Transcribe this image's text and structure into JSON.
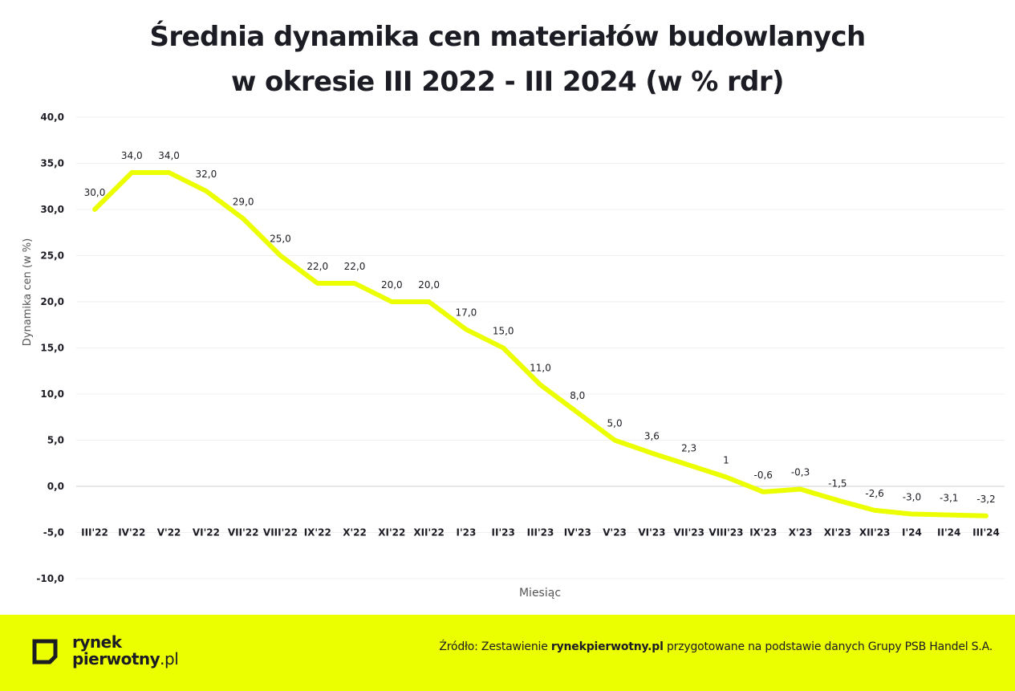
{
  "title": {
    "line1": "Średnia dynamika cen materiałów budowlanych",
    "line2": "w okresie III 2022 - III 2024 (w % rdr)"
  },
  "chart_data": {
    "type": "line",
    "categories": [
      "III'22",
      "IV'22",
      "V'22",
      "VI'22",
      "VII'22",
      "VIII'22",
      "IX'22",
      "X'22",
      "XI'22",
      "XII'22",
      "I'23",
      "II'23",
      "III'23",
      "IV'23",
      "V'23",
      "VI'23",
      "VII'23",
      "VIII'23",
      "IX'23",
      "X'23",
      "XI'23",
      "XII'23",
      "I'24",
      "II'24",
      "III'24"
    ],
    "values": [
      30.0,
      34.0,
      34.0,
      32.0,
      29.0,
      25.0,
      22.0,
      22.0,
      20.0,
      20.0,
      17.0,
      15.0,
      11.0,
      8.0,
      5.0,
      3.6,
      2.3,
      1,
      -0.6,
      -0.3,
      -1.5,
      -2.6,
      -3.0,
      -3.1,
      -3.2
    ],
    "data_labels": [
      "30,0",
      "34,0",
      "34,0",
      "32,0",
      "29,0",
      "25,0",
      "22,0",
      "22,0",
      "20,0",
      "20,0",
      "17,0",
      "15,0",
      "11,0",
      "8,0",
      "5,0",
      "3,6",
      "2,3",
      "1",
      "-0,6",
      "-0,3",
      "-1,5",
      "-2,6",
      "-3,0",
      "-3,1",
      "-3,2"
    ],
    "y_ticks": [
      40,
      35,
      30,
      25,
      20,
      15,
      10,
      5,
      0,
      -5,
      -10
    ],
    "y_tick_labels": [
      "40,0",
      "35,0",
      "30,0",
      "25,0",
      "20,0",
      "15,0",
      "10,0",
      "5,0",
      "0,0",
      "-5,0",
      "-10,0"
    ],
    "ylim": [
      -10,
      40
    ],
    "xlabel": "Miesiąc",
    "ylabel": "Dynamika cen (w %)",
    "grid": true,
    "line_color": "#ebff00"
  },
  "footer": {
    "logo_line1": "rynek",
    "logo_line2_bold": "pierwotny",
    "logo_line2_suffix": ".pl",
    "source_prefix": "Źródło: Zestawienie ",
    "source_bold": "rynekpierwotny.pl",
    "source_suffix": " przygotowane na podstawie danych Grupy PSB Handel S.A.",
    "background_color": "#ebff00"
  }
}
